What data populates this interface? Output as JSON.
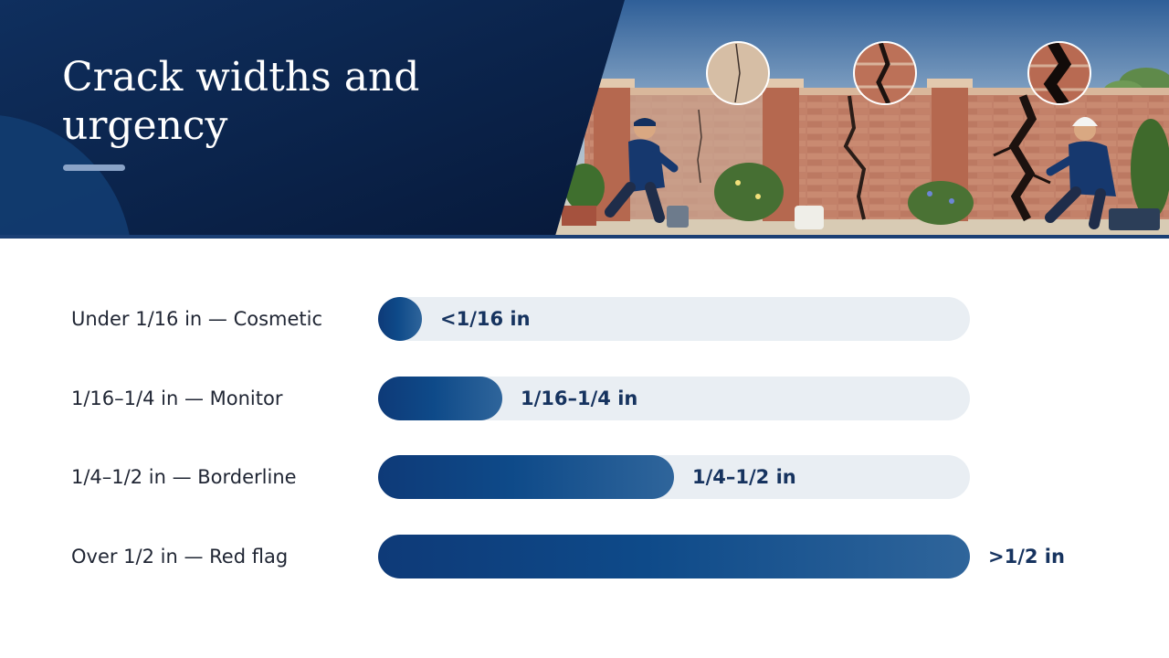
{
  "header": {
    "title": "Crack widths and urgency"
  },
  "colors": {
    "header_bg": "#0d2b57",
    "bar_fill": "#0e4a89",
    "track": "#e9eef3",
    "label_text": "#1f2533",
    "value_text": "#16335f"
  },
  "chart_data": {
    "type": "bar",
    "orientation": "horizontal",
    "categories": [
      "Under 1/16 in — Cosmetic",
      "1/16–1/4 in — Monitor",
      "1/4–1/2 in — Borderline",
      "Over 1/2 in — Red flag"
    ],
    "values": [
      0.07,
      0.21,
      0.5,
      1.0
    ],
    "value_labels": [
      "<1/16 in",
      "1/16–1/4 in",
      "1/4–1/2 in",
      ">1/2 in"
    ],
    "xlim": [
      0,
      1
    ],
    "grid": false,
    "legend": "none"
  }
}
